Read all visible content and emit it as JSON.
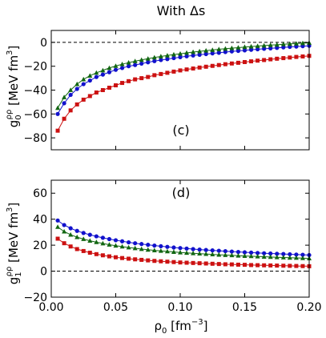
{
  "figure": {
    "title": "With Δs"
  },
  "colors": {
    "red": "#cc1111",
    "blue": "#1111cc",
    "green": "#116611"
  },
  "chart_data": [
    {
      "type": "line",
      "panel_label": "(c)",
      "xlabel": "",
      "ylabel_symbol": "g",
      "ylabel_sub": "0",
      "ylabel_sup": "ρρ",
      "ylabel_unit": "[MeV fm",
      "ylabel_unit_sup": "3",
      "ylabel_unit_end": "]",
      "xlim": [
        0.0,
        0.2
      ],
      "ylim": [
        -90,
        10
      ],
      "xticks": [
        0.0,
        0.05,
        0.1,
        0.15,
        0.2
      ],
      "xtick_labels": [
        "",
        "",
        "",
        "",
        ""
      ],
      "yticks": [
        -80,
        -60,
        -40,
        -20,
        0
      ],
      "ytick_labels": [
        "−80",
        "−60",
        "−40",
        "−20",
        "0"
      ],
      "reference_line": 0,
      "series": [
        {
          "color": "#cc1111",
          "marker": "square",
          "x": [
            0.005,
            0.01,
            0.015,
            0.02,
            0.025,
            0.03,
            0.035,
            0.04,
            0.045,
            0.05,
            0.055,
            0.06,
            0.065,
            0.07,
            0.075,
            0.08,
            0.085,
            0.09,
            0.095,
            0.1,
            0.105,
            0.11,
            0.115,
            0.12,
            0.125,
            0.13,
            0.135,
            0.14,
            0.145,
            0.15,
            0.155,
            0.16,
            0.165,
            0.17,
            0.175,
            0.18,
            0.185,
            0.19,
            0.195,
            0.2
          ],
          "y": [
            -74,
            -64,
            -57,
            -52,
            -48,
            -45,
            -42,
            -40,
            -38,
            -36,
            -34,
            -32.5,
            -31,
            -30,
            -29,
            -27.5,
            -26.5,
            -25.5,
            -24.5,
            -23.5,
            -22.7,
            -21.9,
            -21.1,
            -20.4,
            -19.7,
            -19,
            -18.3,
            -17.7,
            -17.1,
            -16.5,
            -15.9,
            -15.3,
            -14.8,
            -14.2,
            -13.7,
            -13.2,
            -12.7,
            -12.2,
            -11.8,
            -11.3
          ]
        },
        {
          "color": "#1111cc",
          "marker": "circle",
          "x": [
            0.005,
            0.01,
            0.015,
            0.02,
            0.025,
            0.03,
            0.035,
            0.04,
            0.045,
            0.05,
            0.055,
            0.06,
            0.065,
            0.07,
            0.075,
            0.08,
            0.085,
            0.09,
            0.095,
            0.1,
            0.105,
            0.11,
            0.115,
            0.12,
            0.125,
            0.13,
            0.135,
            0.14,
            0.145,
            0.15,
            0.155,
            0.16,
            0.165,
            0.17,
            0.175,
            0.18,
            0.185,
            0.19,
            0.195,
            0.2
          ],
          "y": [
            -60,
            -51,
            -44,
            -39,
            -35,
            -32,
            -29,
            -27,
            -25,
            -23,
            -21.5,
            -20,
            -19,
            -17.8,
            -16.7,
            -15.7,
            -14.8,
            -14,
            -13.2,
            -12.4,
            -11.7,
            -11,
            -10.4,
            -9.8,
            -9.2,
            -8.7,
            -8.1,
            -7.6,
            -7.1,
            -6.7,
            -6.2,
            -5.8,
            -5.4,
            -5,
            -4.6,
            -4.2,
            -3.8,
            -3.5,
            -3.2,
            -2.9
          ]
        },
        {
          "color": "#116611",
          "marker": "triangle",
          "x": [
            0.005,
            0.01,
            0.015,
            0.02,
            0.025,
            0.03,
            0.035,
            0.04,
            0.045,
            0.05,
            0.055,
            0.06,
            0.065,
            0.07,
            0.075,
            0.08,
            0.085,
            0.09,
            0.095,
            0.1,
            0.105,
            0.11,
            0.115,
            0.12,
            0.125,
            0.13,
            0.135,
            0.14,
            0.145,
            0.15,
            0.155,
            0.16,
            0.165,
            0.17,
            0.175,
            0.18,
            0.185,
            0.19,
            0.195,
            0.2
          ],
          "y": [
            -55,
            -46,
            -40,
            -35,
            -31,
            -28,
            -25.5,
            -23.5,
            -21.5,
            -19.8,
            -18.3,
            -17,
            -15.8,
            -14.7,
            -13.7,
            -12.7,
            -11.8,
            -11,
            -10.2,
            -9.5,
            -8.8,
            -8.1,
            -7.5,
            -6.9,
            -6.4,
            -5.8,
            -5.3,
            -4.8,
            -4.4,
            -3.9,
            -3.5,
            -3.1,
            -2.7,
            -2.3,
            -2,
            -1.6,
            -1.3,
            -1,
            -0.7,
            -0.4
          ]
        }
      ]
    },
    {
      "type": "line",
      "panel_label": "(d)",
      "xlabel": "ρ",
      "xlabel_sub": "0",
      "xlabel_unit": "[fm",
      "xlabel_unit_sup": "−3",
      "xlabel_unit_end": "]",
      "ylabel_symbol": "g",
      "ylabel_sub": "1",
      "ylabel_sup": "ρρ",
      "ylabel_unit": "[MeV fm",
      "ylabel_unit_sup": "3",
      "ylabel_unit_end": "]",
      "xlim": [
        0.0,
        0.2
      ],
      "ylim": [
        -20,
        70
      ],
      "xticks": [
        0.0,
        0.05,
        0.1,
        0.15,
        0.2
      ],
      "xtick_labels": [
        "0.00",
        "0.05",
        "0.10",
        "0.15",
        "0.20"
      ],
      "yticks": [
        -20,
        0,
        20,
        40,
        60
      ],
      "ytick_labels": [
        "−20",
        "0",
        "20",
        "40",
        "60"
      ],
      "reference_line": 0,
      "series": [
        {
          "color": "#cc1111",
          "marker": "square",
          "x": [
            0.005,
            0.01,
            0.015,
            0.02,
            0.025,
            0.03,
            0.035,
            0.04,
            0.045,
            0.05,
            0.055,
            0.06,
            0.065,
            0.07,
            0.075,
            0.08,
            0.085,
            0.09,
            0.095,
            0.1,
            0.105,
            0.11,
            0.115,
            0.12,
            0.125,
            0.13,
            0.135,
            0.14,
            0.145,
            0.15,
            0.155,
            0.16,
            0.165,
            0.17,
            0.175,
            0.18,
            0.185,
            0.19,
            0.195,
            0.2
          ],
          "y": [
            25,
            21.5,
            19,
            17,
            15.5,
            14.2,
            13.1,
            12.2,
            11.4,
            10.7,
            10.1,
            9.6,
            9.1,
            8.7,
            8.3,
            7.9,
            7.6,
            7.3,
            7,
            6.7,
            6.5,
            6.3,
            6.1,
            5.9,
            5.7,
            5.5,
            5.3,
            5.2,
            5,
            4.9,
            4.7,
            4.6,
            4.5,
            4.4,
            4.3,
            4.2,
            4.1,
            4,
            3.9,
            3.8
          ]
        },
        {
          "color": "#1111cc",
          "marker": "circle",
          "x": [
            0.005,
            0.01,
            0.015,
            0.02,
            0.025,
            0.03,
            0.035,
            0.04,
            0.045,
            0.05,
            0.055,
            0.06,
            0.065,
            0.07,
            0.075,
            0.08,
            0.085,
            0.09,
            0.095,
            0.1,
            0.105,
            0.11,
            0.115,
            0.12,
            0.125,
            0.13,
            0.135,
            0.14,
            0.145,
            0.15,
            0.155,
            0.16,
            0.165,
            0.17,
            0.175,
            0.18,
            0.185,
            0.19,
            0.195,
            0.2
          ],
          "y": [
            39,
            35.5,
            33,
            31,
            29.4,
            28,
            26.8,
            25.7,
            24.7,
            23.8,
            23,
            22.2,
            21.5,
            20.9,
            20.3,
            19.7,
            19.2,
            18.7,
            18.2,
            17.8,
            17.4,
            17,
            16.6,
            16.3,
            16,
            15.7,
            15.4,
            15.1,
            14.8,
            14.5,
            14.3,
            14,
            13.8,
            13.6,
            13.4,
            13.2,
            13,
            12.8,
            12.6,
            12.4
          ]
        },
        {
          "color": "#116611",
          "marker": "triangle",
          "x": [
            0.005,
            0.01,
            0.015,
            0.02,
            0.025,
            0.03,
            0.035,
            0.04,
            0.045,
            0.05,
            0.055,
            0.06,
            0.065,
            0.07,
            0.075,
            0.08,
            0.085,
            0.09,
            0.095,
            0.1,
            0.105,
            0.11,
            0.115,
            0.12,
            0.125,
            0.13,
            0.135,
            0.14,
            0.145,
            0.15,
            0.155,
            0.16,
            0.165,
            0.17,
            0.175,
            0.18,
            0.185,
            0.19,
            0.195,
            0.2
          ],
          "y": [
            34,
            30.5,
            28,
            26.2,
            24.7,
            23.4,
            22.3,
            21.3,
            20.4,
            19.6,
            18.9,
            18.2,
            17.6,
            17,
            16.5,
            16,
            15.6,
            15.2,
            14.8,
            14.4,
            14.1,
            13.8,
            13.5,
            13.2,
            12.9,
            12.6,
            12.4,
            12.2,
            11.9,
            11.7,
            11.5,
            11.3,
            11.1,
            10.9,
            10.7,
            10.5,
            10.3,
            10.2,
            10,
            9.8
          ]
        }
      ]
    }
  ]
}
